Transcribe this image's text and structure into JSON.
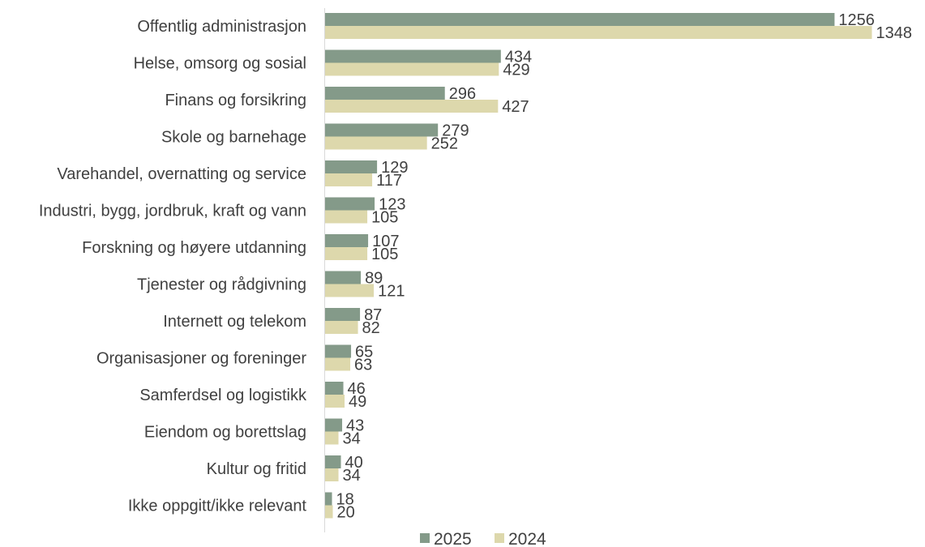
{
  "chart_data": {
    "type": "bar",
    "orientation": "horizontal",
    "categories": [
      "Offentlig administrasjon",
      "Helse, omsorg og sosial",
      "Finans og forsikring",
      "Skole og barnehage",
      "Varehandel, overnatting og service",
      "Industri, bygg, jordbruk, kraft og vann",
      "Forskning og høyere utdanning",
      "Tjenester og rådgivning",
      "Internett og telekom",
      "Organisasjoner og foreninger",
      "Samferdsel og logistikk",
      "Eiendom og borettslag",
      "Kultur og fritid",
      "Ikke oppgitt/ikke relevant"
    ],
    "series": [
      {
        "name": "2025",
        "color": "#849a89",
        "values": [
          1256,
          434,
          296,
          279,
          129,
          123,
          107,
          89,
          87,
          65,
          46,
          43,
          40,
          18
        ]
      },
      {
        "name": "2024",
        "color": "#ddd8ac",
        "values": [
          1348,
          429,
          427,
          252,
          117,
          105,
          105,
          121,
          82,
          63,
          49,
          34,
          34,
          20
        ]
      }
    ],
    "xlim": [
      0,
      1348
    ],
    "title": "",
    "xlabel": "",
    "ylabel": "",
    "grid": false,
    "legend_position": "bottom",
    "data_labels": true
  }
}
